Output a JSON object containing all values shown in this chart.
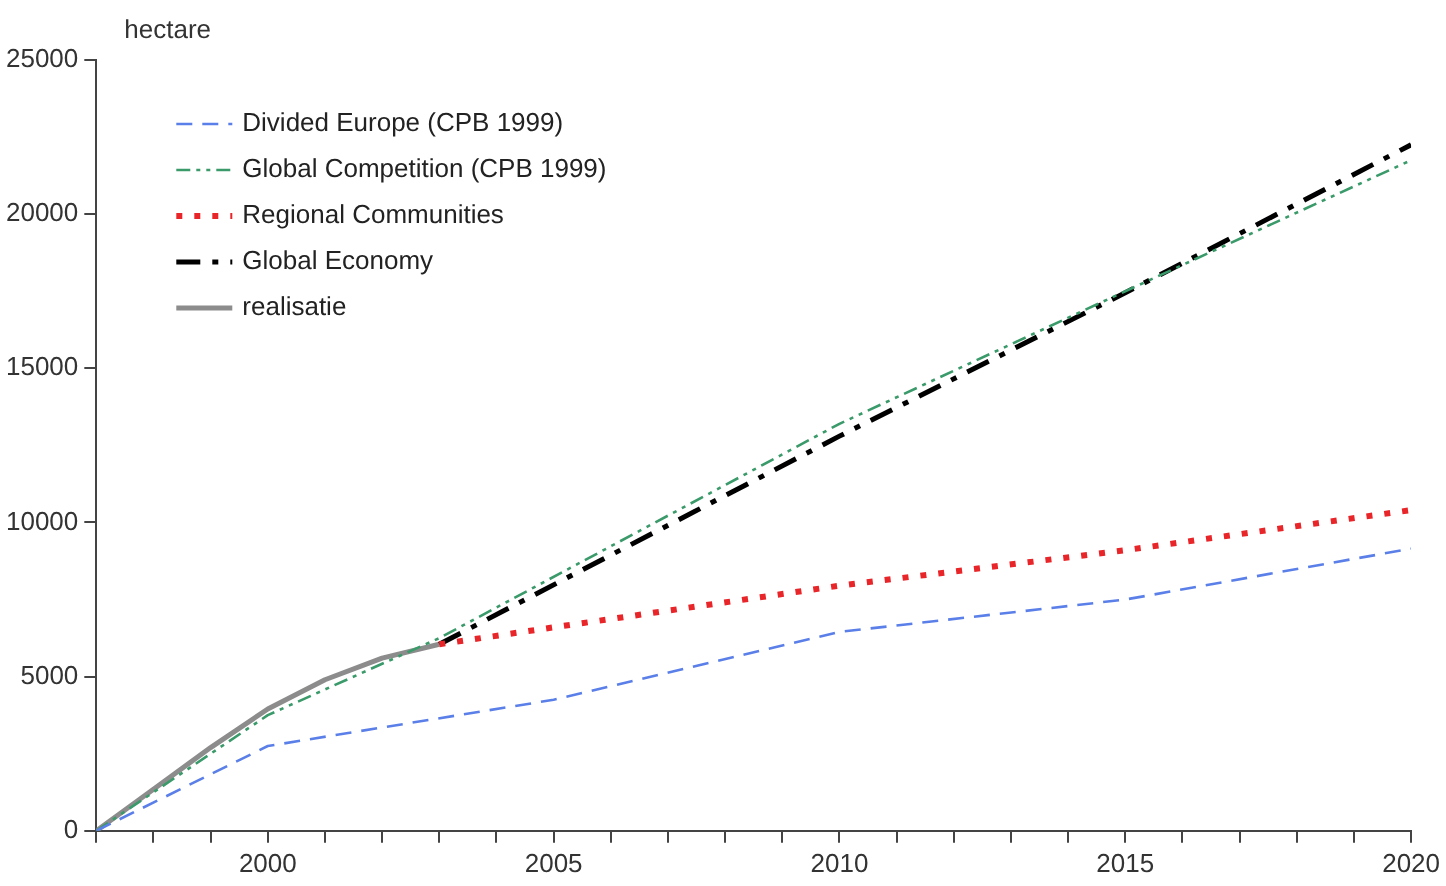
{
  "chart_data": {
    "type": "line",
    "ylabel": "hectare",
    "xlim": [
      1997,
      2020
    ],
    "xticks": [
      {
        "value": 1997,
        "label": null
      },
      {
        "value": 1998,
        "label": null
      },
      {
        "value": 1999,
        "label": null
      },
      2000,
      {
        "value": 2001,
        "label": null
      },
      {
        "value": 2002,
        "label": null
      },
      {
        "value": 2003,
        "label": null
      },
      {
        "value": 2004,
        "label": null
      },
      2005,
      {
        "value": 2006,
        "label": null
      },
      {
        "value": 2007,
        "label": null
      },
      {
        "value": 2008,
        "label": null
      },
      {
        "value": 2009,
        "label": null
      },
      2010,
      {
        "value": 2011,
        "label": null
      },
      {
        "value": 2012,
        "label": null
      },
      {
        "value": 2013,
        "label": null
      },
      {
        "value": 2014,
        "label": null
      },
      2015,
      {
        "value": 2016,
        "label": null
      },
      {
        "value": 2017,
        "label": null
      },
      {
        "value": 2018,
        "label": null
      },
      {
        "value": 2019,
        "label": null
      },
      2020
    ],
    "ylim": [
      0,
      25000
    ],
    "yticks": [
      0,
      5000,
      10000,
      15000,
      20000,
      25000
    ],
    "grid": false,
    "legend": "top left",
    "marker": "none",
    "series": [
      {
        "name": "Divided Europe (CPB 1999)",
        "color": "#5b7fe8",
        "line_style": "dashed",
        "x": [
          1997,
          2000,
          2005,
          2010,
          2015,
          2020
        ],
        "values": [
          0,
          2750,
          4250,
          6450,
          7500,
          9150
        ]
      },
      {
        "name": "Global Competition (CPB 1999)",
        "color": "#3a9a6a",
        "line_style": "dashdot",
        "x": [
          1997,
          2000,
          2003,
          2010,
          2015,
          2020
        ],
        "values": [
          0,
          3750,
          6250,
          13200,
          17500,
          21750
        ]
      },
      {
        "name": "Regional Communities",
        "color": "#e8262a",
        "line_style": "dotted",
        "x": [
          2003,
          2005,
          2010,
          2015,
          2020
        ],
        "values": [
          6050,
          6600,
          7950,
          9100,
          10400
        ]
      },
      {
        "name": "Global Economy",
        "color": "#000000",
        "line_style": "longdashdot",
        "x": [
          2003,
          2010,
          2015,
          2020
        ],
        "values": [
          6050,
          12800,
          17450,
          22250
        ]
      },
      {
        "name": "realisatie",
        "color": "#8c8c8c",
        "line_style": "solid",
        "x": [
          1997,
          1998,
          1999,
          2000,
          2001,
          2002,
          2003
        ],
        "values": [
          0,
          1350,
          2700,
          3950,
          4900,
          5600,
          6050
        ]
      }
    ]
  }
}
